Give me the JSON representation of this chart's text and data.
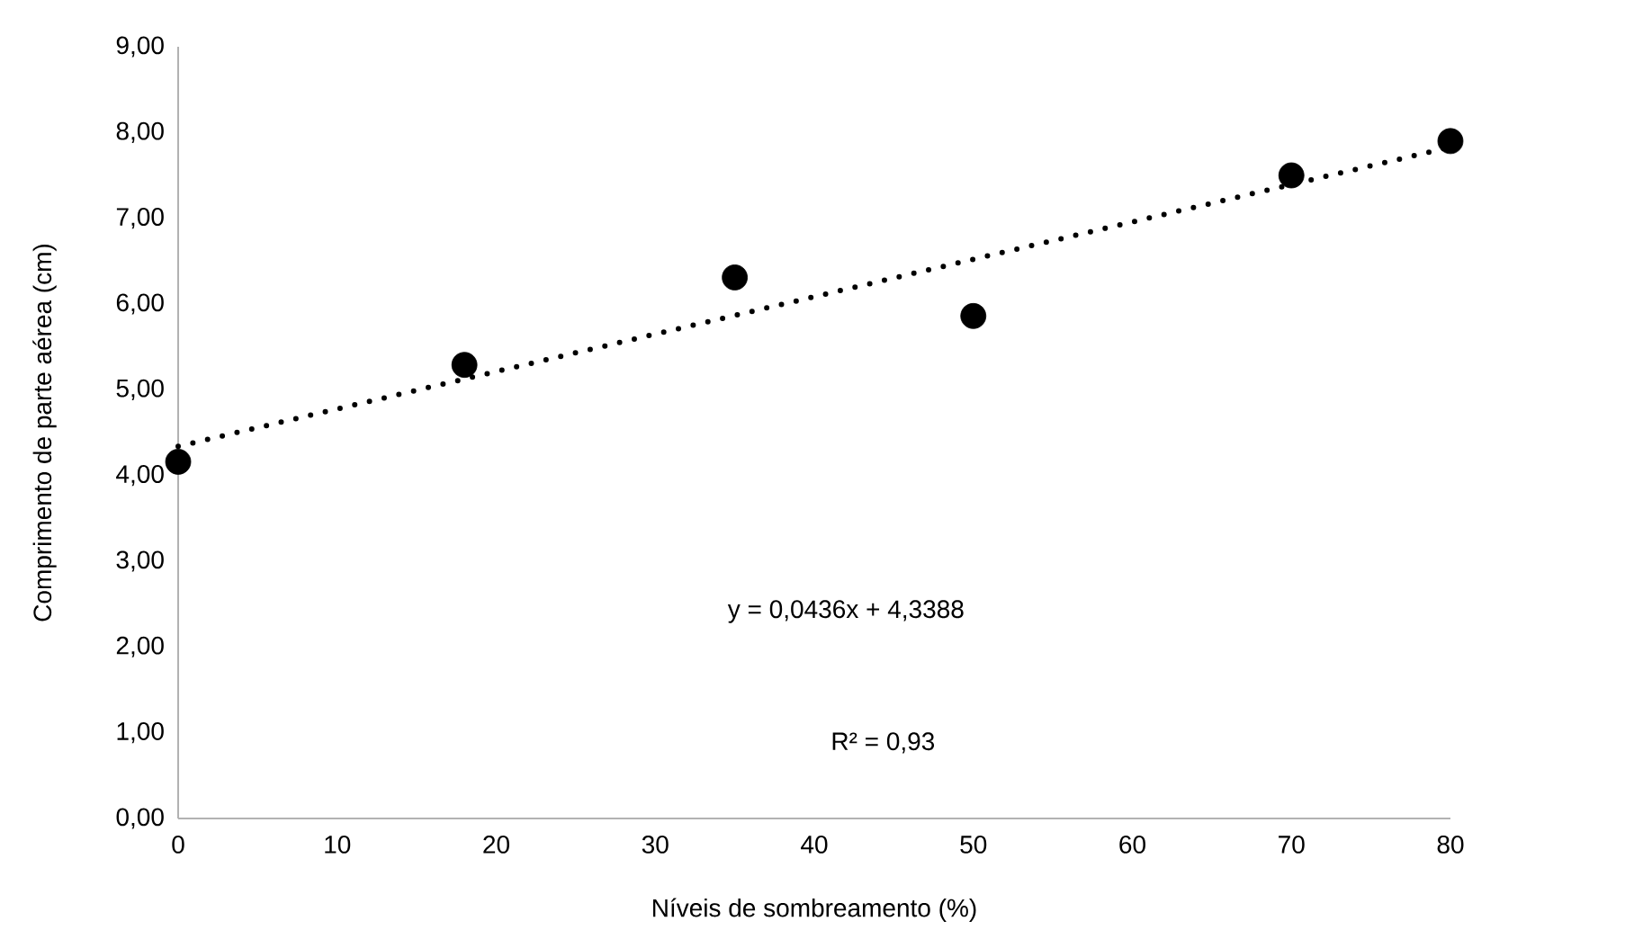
{
  "chart_data": {
    "type": "scatter",
    "xlabel": "Níveis de sombreamento (%)",
    "ylabel": "Comprimento de parte aérea (cm)",
    "xlim": [
      0,
      80
    ],
    "xticks": [
      0,
      10,
      20,
      30,
      40,
      50,
      60,
      70,
      80
    ],
    "ylim": [
      0,
      9
    ],
    "yticks": [
      {
        "value": 0,
        "label": "0,00"
      },
      {
        "value": 1,
        "label": "1,00"
      },
      {
        "value": 2,
        "label": "2,00"
      },
      {
        "value": 3,
        "label": "3,00"
      },
      {
        "value": 4,
        "label": "4,00"
      },
      {
        "value": 5,
        "label": "5,00"
      },
      {
        "value": 6,
        "label": "6,00"
      },
      {
        "value": 7,
        "label": "7,00"
      },
      {
        "value": 8,
        "label": "8,00"
      },
      {
        "value": 9,
        "label": "9,00"
      }
    ],
    "grid": false,
    "series": [
      {
        "color": "#000000",
        "marker": "circle",
        "x": [
          0,
          18,
          35,
          50,
          70,
          80
        ],
        "values": [
          4.16,
          5.29,
          6.31,
          5.86,
          7.5,
          7.9
        ]
      },
      {
        "type": "line",
        "color": "#000000",
        "marker": "none",
        "line_style": "dotted",
        "x": [
          0,
          80
        ],
        "values": [
          4.34,
          7.83
        ]
      }
    ],
    "annotations": [
      "y = 0,0436x + 4,3388",
      "R² = 0,93"
    ]
  }
}
